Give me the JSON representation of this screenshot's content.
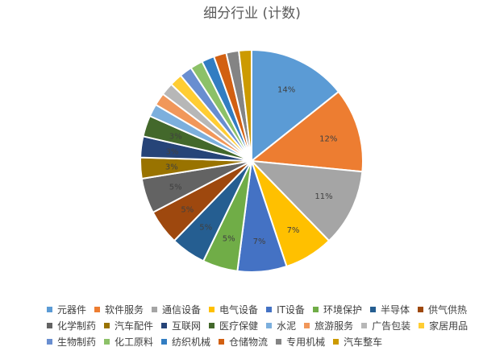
{
  "chart_data": {
    "type": "pie",
    "title": "细分行业 (计数)",
    "legend_position": "bottom",
    "slices": [
      {
        "label": "元器件",
        "value": 14,
        "data_label": "14%",
        "color": "#5B9BD5"
      },
      {
        "label": "软件服务",
        "value": 12,
        "data_label": "12%",
        "color": "#ED7D31"
      },
      {
        "label": "通信设备",
        "value": 11,
        "data_label": "11%",
        "color": "#A5A5A5"
      },
      {
        "label": "电气设备",
        "value": 7,
        "data_label": "7%",
        "color": "#FFC000"
      },
      {
        "label": "IT设备",
        "value": 7,
        "data_label": "7%",
        "color": "#4472C4"
      },
      {
        "label": "环境保护",
        "value": 5,
        "data_label": "5%",
        "color": "#70AD47"
      },
      {
        "label": "半导体",
        "value": 5,
        "data_label": "5%",
        "color": "#255E91"
      },
      {
        "label": "供气供热",
        "value": 5,
        "data_label": "5%",
        "color": "#9E480E"
      },
      {
        "label": "化学制药",
        "value": 5,
        "data_label": "5%",
        "color": "#636363"
      },
      {
        "label": "汽车配件",
        "value": 3,
        "data_label": "3%",
        "color": "#997300"
      },
      {
        "label": "互联网",
        "value": 3,
        "data_label": "3%",
        "color": "#264478"
      },
      {
        "label": "医疗保健",
        "value": 3,
        "data_label": "3%",
        "color": "#43682B"
      },
      {
        "label": "水泥",
        "value": 1.8,
        "data_label": "",
        "color": "#7CAFDD"
      },
      {
        "label": "旅游服务",
        "value": 1.8,
        "data_label": "",
        "color": "#F1975A"
      },
      {
        "label": "广告包装",
        "value": 1.8,
        "data_label": "",
        "color": "#B7B7B7"
      },
      {
        "label": "家居用品",
        "value": 1.8,
        "data_label": "",
        "color": "#FFCD33"
      },
      {
        "label": "生物制药",
        "value": 1.8,
        "data_label": "",
        "color": "#698ED0"
      },
      {
        "label": "化工原料",
        "value": 1.8,
        "data_label": "",
        "color": "#8CC168"
      },
      {
        "label": "纺织机械",
        "value": 1.8,
        "data_label": "",
        "color": "#327DC2"
      },
      {
        "label": "仓储物流",
        "value": 1.8,
        "data_label": "",
        "color": "#D26012"
      },
      {
        "label": "专用机械",
        "value": 1.8,
        "data_label": "",
        "color": "#848484"
      },
      {
        "label": "汽车整车",
        "value": 1.8,
        "data_label": "",
        "color": "#CC9A00"
      }
    ]
  }
}
